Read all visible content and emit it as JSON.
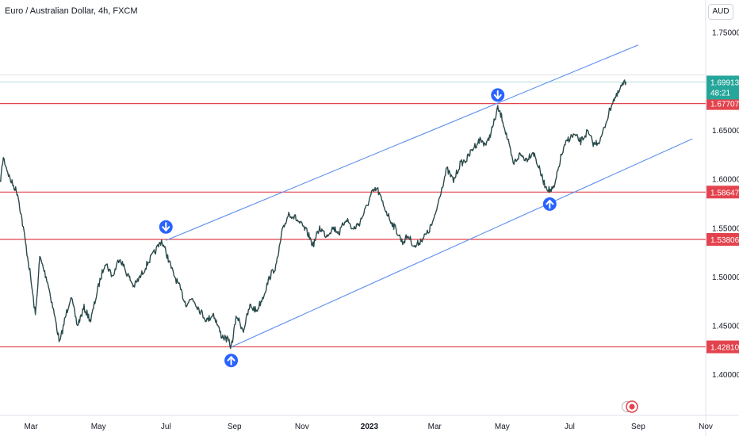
{
  "header": {
    "title": "Euro / Australian Dollar, 4h, FXCM",
    "currency_button": "AUD"
  },
  "colors": {
    "background": "#ffffff",
    "candles": "#1b1f24",
    "channel": "#5b8def",
    "levels": "#e3434d",
    "last_price_bg": "#26a69a",
    "arrows": "#2962ff",
    "axis_text": "#131722"
  },
  "chart_data": {
    "type": "line",
    "title": "Euro / Australian Dollar, 4h, FXCM",
    "xlabel": "",
    "ylabel": "",
    "ylim": [
      1.358,
      1.783
    ],
    "y_ticks": [
      "1.75000",
      "1.70000",
      "1.65000",
      "1.60000",
      "1.55000",
      "1.50000",
      "1.45000",
      "1.40000"
    ],
    "y_tick_values": [
      1.75,
      1.7,
      1.65,
      1.6,
      1.55,
      1.5,
      1.45,
      1.4
    ],
    "x_ticks": [
      "Mar",
      "May",
      "Jul",
      "Sep",
      "Nov",
      "2023",
      "Mar",
      "May",
      "Jul",
      "Sep",
      "Nov"
    ],
    "x_tick_dates": [
      "2022-03-01",
      "2022-05-01",
      "2022-07-01",
      "2022-09-01",
      "2022-11-01",
      "2023-01-01",
      "2023-03-01",
      "2023-05-01",
      "2023-07-01",
      "2023-09-01",
      "2023-11-01"
    ],
    "x_range": [
      "2022-02-01",
      "2023-11-01"
    ],
    "series": [
      {
        "points": [
          [
            "2022-02-01",
            1.595
          ],
          [
            "2022-02-04",
            1.622
          ],
          [
            "2022-02-10",
            1.6
          ],
          [
            "2022-02-17",
            1.585
          ],
          [
            "2022-02-22",
            1.55
          ],
          [
            "2022-02-28",
            1.505
          ],
          [
            "2022-03-05",
            1.46
          ],
          [
            "2022-03-09",
            1.52
          ],
          [
            "2022-03-16",
            1.495
          ],
          [
            "2022-03-22",
            1.462
          ],
          [
            "2022-03-27",
            1.432
          ],
          [
            "2022-04-01",
            1.458
          ],
          [
            "2022-04-06",
            1.48
          ],
          [
            "2022-04-12",
            1.45
          ],
          [
            "2022-04-18",
            1.468
          ],
          [
            "2022-04-24",
            1.455
          ],
          [
            "2022-05-01",
            1.49
          ],
          [
            "2022-05-07",
            1.515
          ],
          [
            "2022-05-14",
            1.5
          ],
          [
            "2022-05-20",
            1.52
          ],
          [
            "2022-05-26",
            1.505
          ],
          [
            "2022-06-02",
            1.49
          ],
          [
            "2022-06-08",
            1.5
          ],
          [
            "2022-06-15",
            1.515
          ],
          [
            "2022-06-21",
            1.525
          ],
          [
            "2022-06-27",
            1.537
          ],
          [
            "2022-07-02",
            1.522
          ],
          [
            "2022-07-07",
            1.505
          ],
          [
            "2022-07-13",
            1.49
          ],
          [
            "2022-07-19",
            1.472
          ],
          [
            "2022-07-25",
            1.478
          ],
          [
            "2022-08-01",
            1.465
          ],
          [
            "2022-08-07",
            1.455
          ],
          [
            "2022-08-13",
            1.462
          ],
          [
            "2022-08-20",
            1.44
          ],
          [
            "2022-08-26",
            1.435
          ],
          [
            "2022-08-29",
            1.428
          ],
          [
            "2022-09-03",
            1.46
          ],
          [
            "2022-09-09",
            1.445
          ],
          [
            "2022-09-15",
            1.47
          ],
          [
            "2022-09-21",
            1.465
          ],
          [
            "2022-09-27",
            1.48
          ],
          [
            "2022-10-03",
            1.5
          ],
          [
            "2022-10-09",
            1.512
          ],
          [
            "2022-10-14",
            1.545
          ],
          [
            "2022-10-20",
            1.565
          ],
          [
            "2022-10-26",
            1.56
          ],
          [
            "2022-11-01",
            1.552
          ],
          [
            "2022-11-06",
            1.545
          ],
          [
            "2022-11-11",
            1.532
          ],
          [
            "2022-11-17",
            1.55
          ],
          [
            "2022-11-23",
            1.542
          ],
          [
            "2022-11-29",
            1.55
          ],
          [
            "2022-12-05",
            1.545
          ],
          [
            "2022-12-11",
            1.56
          ],
          [
            "2022-12-17",
            1.548
          ],
          [
            "2022-12-23",
            1.555
          ],
          [
            "2022-12-29",
            1.57
          ],
          [
            "2023-01-03",
            1.585
          ],
          [
            "2023-01-08",
            1.59
          ],
          [
            "2023-01-13",
            1.575
          ],
          [
            "2023-01-19",
            1.56
          ],
          [
            "2023-01-25",
            1.548
          ],
          [
            "2023-01-31",
            1.535
          ],
          [
            "2023-02-05",
            1.542
          ],
          [
            "2023-02-11",
            1.53
          ],
          [
            "2023-02-17",
            1.538
          ],
          [
            "2023-02-23",
            1.545
          ],
          [
            "2023-03-01",
            1.56
          ],
          [
            "2023-03-06",
            1.585
          ],
          [
            "2023-03-12",
            1.61
          ],
          [
            "2023-03-18",
            1.598
          ],
          [
            "2023-03-24",
            1.615
          ],
          [
            "2023-03-30",
            1.62
          ],
          [
            "2023-04-05",
            1.632
          ],
          [
            "2023-04-11",
            1.64
          ],
          [
            "2023-04-17",
            1.635
          ],
          [
            "2023-04-23",
            1.655
          ],
          [
            "2023-04-27",
            1.672
          ],
          [
            "2023-05-01",
            1.662
          ],
          [
            "2023-05-06",
            1.64
          ],
          [
            "2023-05-11",
            1.615
          ],
          [
            "2023-05-17",
            1.625
          ],
          [
            "2023-05-23",
            1.62
          ],
          [
            "2023-05-29",
            1.628
          ],
          [
            "2023-06-03",
            1.612
          ],
          [
            "2023-06-08",
            1.595
          ],
          [
            "2023-06-13",
            1.588
          ],
          [
            "2023-06-17",
            1.59
          ],
          [
            "2023-06-23",
            1.622
          ],
          [
            "2023-06-29",
            1.64
          ],
          [
            "2023-07-05",
            1.645
          ],
          [
            "2023-07-11",
            1.638
          ],
          [
            "2023-07-17",
            1.648
          ],
          [
            "2023-07-23",
            1.635
          ],
          [
            "2023-07-29",
            1.64
          ],
          [
            "2023-08-04",
            1.662
          ],
          [
            "2023-08-09",
            1.68
          ],
          [
            "2023-08-13",
            1.685
          ],
          [
            "2023-08-17",
            1.695
          ],
          [
            "2023-08-21",
            1.699
          ]
        ]
      }
    ],
    "channel_lines": [
      {
        "label": "upper",
        "from": [
          "2022-07-01",
          1.537
        ],
        "to": [
          "2023-09-01",
          1.737
        ]
      },
      {
        "label": "lower",
        "from": [
          "2022-08-29",
          1.428
        ],
        "to": [
          "2023-10-20",
          1.641
        ]
      }
    ],
    "horizontal_levels": [
      "1.67707",
      "1.58647",
      "1.53806",
      "1.42810"
    ],
    "horizontal_level_values": [
      1.67707,
      1.58647,
      1.53806,
      1.4281
    ],
    "last_price": {
      "value": "1.69913",
      "countdown": "48:21",
      "number": 1.69913
    },
    "annotations": [
      {
        "direction": "down",
        "date": "2022-07-01",
        "value": 1.537
      },
      {
        "direction": "up",
        "date": "2022-08-29",
        "value": 1.428
      },
      {
        "direction": "down",
        "date": "2023-04-27",
        "value": 1.672
      },
      {
        "direction": "up",
        "date": "2023-06-13",
        "value": 1.588
      }
    ],
    "grid": false,
    "legend": "none"
  }
}
